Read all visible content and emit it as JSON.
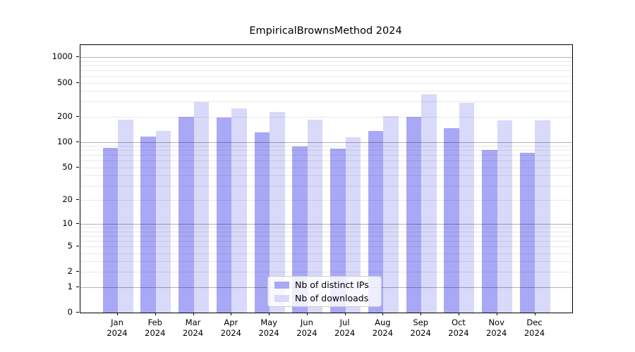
{
  "title": "EmpiricalBrownsMethod 2024",
  "chart_data": {
    "type": "bar",
    "title": "EmpiricalBrownsMethod 2024",
    "xlabel": "",
    "ylabel": "",
    "scale": "log10(1+y)",
    "grid": true,
    "legend_position": "lower center",
    "categories": [
      "Jan",
      "Feb",
      "Mar",
      "Apr",
      "May",
      "Jun",
      "Jul",
      "Aug",
      "Sep",
      "Oct",
      "Nov",
      "Dec"
    ],
    "year": "2024",
    "series": [
      {
        "name": "Nb of distinct IPs",
        "color": "#a8a8f6",
        "values": [
          86,
          117,
          200,
          194,
          131,
          89,
          83,
          135,
          198,
          145,
          81,
          74
        ]
      },
      {
        "name": "Nb of downloads",
        "color": "#d9d9f9",
        "values": [
          183,
          136,
          297,
          252,
          225,
          184,
          114,
          204,
          365,
          293,
          181,
          179
        ]
      }
    ],
    "y_ticks": [
      0,
      1,
      2,
      5,
      10,
      20,
      50,
      100,
      200,
      500,
      1000
    ],
    "y_minor_gridlines": [
      2,
      3,
      4,
      5,
      6,
      7,
      8,
      9,
      20,
      30,
      40,
      50,
      60,
      70,
      80,
      90,
      200,
      300,
      400,
      500,
      600,
      700,
      800,
      900
    ],
    "y_major_gridlines": [
      1,
      10,
      100,
      1000
    ],
    "ylim": [
      0,
      1390
    ],
    "colors": {
      "grid_minor": "rgba(0,0,0,0.085)",
      "grid_major": "rgba(0,0,0,0.30)",
      "spine": "#000000",
      "background": "#ffffff"
    }
  }
}
